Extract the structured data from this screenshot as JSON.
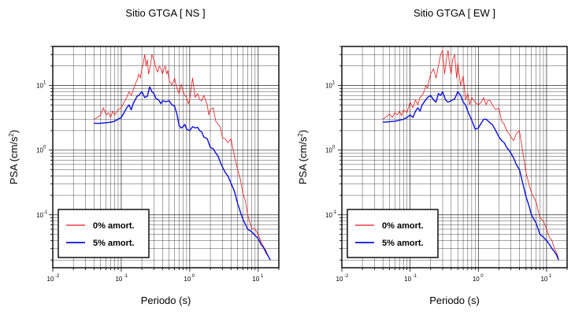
{
  "colors": {
    "zero_damping": "#e8191a",
    "five_damping": "#0a10d8",
    "grid": "#000000"
  },
  "chart_data": [
    {
      "type": "line",
      "title": "Sitio GTGA [ NS ]",
      "xlabel": "Periodo (s)",
      "ylabel": "PSA (cm/s",
      "ylabel_sup": "2",
      "ylabel_close": ")",
      "x_scale": "log",
      "y_scale": "log",
      "xlim": [
        0.01,
        20
      ],
      "ylim": [
        0.0152,
        40
      ],
      "x_ticks": [
        {
          "base": "10",
          "exp": "-2"
        },
        {
          "base": "10",
          "exp": "-1"
        },
        {
          "base": "10",
          "exp": "0"
        },
        {
          "base": "10",
          "exp": "1"
        }
      ],
      "y_ticks": [
        {
          "base": "10",
          "exp": "-1"
        },
        {
          "base": "10",
          "exp": "0"
        },
        {
          "base": "10",
          "exp": "1"
        }
      ],
      "grid": true,
      "legend_position": "bottom-left",
      "series": [
        {
          "name": "0% amort.",
          "color": "#e8191a",
          "x": [
            0.04,
            0.045,
            0.05,
            0.055,
            0.06,
            0.065,
            0.07,
            0.075,
            0.08,
            0.09,
            0.1,
            0.11,
            0.12,
            0.13,
            0.14,
            0.15,
            0.16,
            0.17,
            0.18,
            0.19,
            0.2,
            0.21,
            0.22,
            0.23,
            0.24,
            0.25,
            0.26,
            0.27,
            0.28,
            0.3,
            0.32,
            0.34,
            0.36,
            0.38,
            0.4,
            0.42,
            0.44,
            0.46,
            0.48,
            0.5,
            0.55,
            0.6,
            0.65,
            0.7,
            0.75,
            0.8,
            0.85,
            0.9,
            0.95,
            1.0,
            1.1,
            1.2,
            1.3,
            1.4,
            1.5,
            1.6,
            1.7,
            1.8,
            1.9,
            2.0,
            2.2,
            2.4,
            2.6,
            2.8,
            3.0,
            3.3,
            3.6,
            4.0,
            4.5,
            5.0,
            5.5,
            6.0,
            6.5,
            7.0,
            8.0,
            9.0,
            10.0,
            11.0,
            12.0,
            13.0,
            14.0,
            15.0
          ],
          "y": [
            3.0,
            3.2,
            3.5,
            4.5,
            3.5,
            3.8,
            3.2,
            4.0,
            3.5,
            4.2,
            4.5,
            5.5,
            6.5,
            8.0,
            7.0,
            8.5,
            10.5,
            12.0,
            15.0,
            13.0,
            18.0,
            22.0,
            30.0,
            20.0,
            25.0,
            15.0,
            18.0,
            22.0,
            30.0,
            25.0,
            19.0,
            16.0,
            20.0,
            18.0,
            15.0,
            18.0,
            20.0,
            15.0,
            17.0,
            12.0,
            10.0,
            13.0,
            9.0,
            7.5,
            10.5,
            8.0,
            7.0,
            6.5,
            5.2,
            6.0,
            13.0,
            6.5,
            7.5,
            6.0,
            5.8,
            7.0,
            6.0,
            5.0,
            3.5,
            4.2,
            4.5,
            2.8,
            2.5,
            2.3,
            1.55,
            1.5,
            1.3,
            1.5,
            0.8,
            0.5,
            0.35,
            0.21,
            0.165,
            0.1,
            0.062,
            0.06,
            0.05,
            0.038,
            0.032,
            0.028,
            0.023,
            0.02
          ]
        },
        {
          "name": "5% amort.",
          "color": "#0a10d8",
          "x": [
            0.04,
            0.05,
            0.06,
            0.07,
            0.08,
            0.09,
            0.1,
            0.11,
            0.12,
            0.13,
            0.14,
            0.15,
            0.16,
            0.17,
            0.18,
            0.19,
            0.2,
            0.22,
            0.24,
            0.26,
            0.28,
            0.3,
            0.32,
            0.35,
            0.38,
            0.4,
            0.45,
            0.5,
            0.55,
            0.6,
            0.65,
            0.7,
            0.75,
            0.8,
            0.85,
            0.9,
            1.0,
            1.1,
            1.2,
            1.3,
            1.4,
            1.5,
            1.6,
            1.8,
            2.0,
            2.2,
            2.4,
            2.6,
            2.8,
            3.0,
            3.3,
            3.6,
            4.0,
            4.5,
            5.0,
            5.5,
            6.0,
            7.0,
            8.0,
            9.0,
            10.0,
            11.0,
            12.0,
            13.0,
            14.0,
            15.0
          ],
          "y": [
            2.6,
            2.6,
            2.65,
            2.7,
            2.8,
            3.0,
            3.2,
            3.8,
            4.5,
            5.0,
            4.2,
            5.3,
            6.0,
            6.8,
            7.0,
            7.5,
            8.0,
            6.5,
            6.8,
            9.5,
            8.0,
            7.5,
            6.3,
            6.0,
            5.2,
            5.8,
            5.6,
            5.8,
            5.0,
            4.8,
            3.6,
            2.4,
            2.2,
            2.3,
            2.5,
            2.1,
            2.0,
            2.3,
            2.2,
            2.25,
            2.0,
            1.9,
            1.6,
            1.5,
            1.1,
            1.05,
            0.9,
            0.8,
            0.65,
            0.55,
            0.45,
            0.4,
            0.31,
            0.23,
            0.15,
            0.11,
            0.085,
            0.06,
            0.055,
            0.048,
            0.043,
            0.035,
            0.031,
            0.026,
            0.023,
            0.02
          ]
        }
      ]
    },
    {
      "type": "line",
      "title": "Sitio GTGA [ EW ]",
      "xlabel": "Periodo (s)",
      "ylabel": "PSA (cm/s",
      "ylabel_sup": "2",
      "ylabel_close": ")",
      "x_scale": "log",
      "y_scale": "log",
      "xlim": [
        0.01,
        20
      ],
      "ylim": [
        0.0152,
        40
      ],
      "x_ticks": [
        {
          "base": "10",
          "exp": "-2"
        },
        {
          "base": "10",
          "exp": "-1"
        },
        {
          "base": "10",
          "exp": "0"
        },
        {
          "base": "10",
          "exp": "1"
        }
      ],
      "y_ticks": [
        {
          "base": "10",
          "exp": "-1"
        },
        {
          "base": "10",
          "exp": "0"
        },
        {
          "base": "10",
          "exp": "1"
        }
      ],
      "grid": true,
      "legend_position": "bottom-left",
      "series": [
        {
          "name": "0% amort.",
          "color": "#e8191a",
          "x": [
            0.04,
            0.045,
            0.05,
            0.055,
            0.06,
            0.065,
            0.07,
            0.075,
            0.08,
            0.09,
            0.1,
            0.11,
            0.12,
            0.13,
            0.14,
            0.15,
            0.16,
            0.17,
            0.18,
            0.19,
            0.2,
            0.22,
            0.24,
            0.26,
            0.28,
            0.3,
            0.32,
            0.34,
            0.36,
            0.38,
            0.4,
            0.42,
            0.45,
            0.48,
            0.5,
            0.55,
            0.6,
            0.65,
            0.7,
            0.75,
            0.8,
            0.9,
            1.0,
            1.1,
            1.2,
            1.3,
            1.4,
            1.5,
            1.6,
            1.8,
            2.0,
            2.2,
            2.4,
            2.6,
            2.8,
            3.0,
            3.3,
            3.6,
            4.0,
            4.5,
            5.0,
            5.5,
            6.0,
            7.0,
            8.0,
            9.0,
            10.0,
            11.0,
            12.0,
            13.0,
            14.0,
            15.0
          ],
          "y": [
            3.0,
            3.3,
            3.6,
            3.2,
            3.8,
            3.5,
            4.0,
            3.4,
            4.2,
            3.8,
            5.5,
            4.5,
            6.0,
            5.0,
            6.5,
            7.0,
            8.0,
            10.0,
            9.0,
            12.0,
            15.0,
            18.0,
            13.0,
            20.0,
            30.0,
            35.0,
            15.0,
            25.0,
            35.0,
            20.0,
            15.0,
            25.0,
            30.0,
            13.0,
            22.0,
            10.0,
            14.0,
            6.0,
            7.5,
            5.0,
            6.5,
            5.5,
            5.0,
            5.5,
            6.5,
            5.0,
            6.0,
            5.8,
            5.0,
            4.2,
            4.5,
            2.8,
            2.5,
            2.0,
            1.8,
            1.6,
            1.4,
            1.8,
            2.0,
            0.9,
            0.45,
            0.3,
            0.22,
            0.16,
            0.09,
            0.08,
            0.06,
            0.045,
            0.04,
            0.03,
            0.026,
            0.021
          ]
        },
        {
          "name": "5% amort.",
          "color": "#0a10d8",
          "x": [
            0.04,
            0.05,
            0.06,
            0.07,
            0.08,
            0.09,
            0.1,
            0.11,
            0.12,
            0.13,
            0.14,
            0.15,
            0.16,
            0.17,
            0.18,
            0.2,
            0.22,
            0.24,
            0.26,
            0.28,
            0.3,
            0.33,
            0.36,
            0.4,
            0.45,
            0.5,
            0.55,
            0.6,
            0.65,
            0.7,
            0.8,
            0.9,
            1.0,
            1.1,
            1.2,
            1.3,
            1.4,
            1.5,
            1.6,
            1.8,
            2.0,
            2.2,
            2.4,
            2.6,
            2.8,
            3.0,
            3.3,
            3.6,
            4.0,
            4.5,
            5.0,
            5.5,
            6.0,
            7.0,
            8.0,
            9.0,
            10.0,
            11.0,
            12.0,
            13.0,
            14.0,
            15.0
          ],
          "y": [
            2.7,
            2.75,
            2.8,
            2.9,
            3.0,
            3.2,
            3.5,
            3.2,
            4.0,
            4.5,
            4.0,
            5.0,
            5.5,
            6.0,
            6.5,
            7.0,
            6.0,
            5.5,
            7.5,
            7.0,
            8.0,
            6.0,
            5.5,
            5.8,
            6.2,
            8.0,
            7.0,
            5.5,
            5.0,
            4.0,
            2.9,
            2.1,
            2.2,
            2.6,
            3.0,
            3.0,
            2.8,
            2.6,
            2.5,
            2.0,
            1.6,
            1.4,
            1.3,
            1.1,
            1.0,
            0.9,
            0.75,
            0.6,
            0.5,
            0.3,
            0.19,
            0.14,
            0.1,
            0.075,
            0.05,
            0.045,
            0.04,
            0.035,
            0.03,
            0.027,
            0.024,
            0.02
          ]
        }
      ]
    }
  ]
}
